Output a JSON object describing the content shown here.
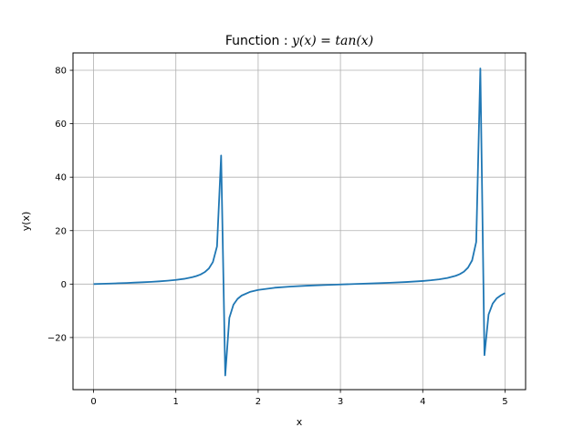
{
  "chart_data": {
    "type": "line",
    "title_prefix": "Function : ",
    "title_math": "y(x) = tan(x)",
    "xlabel": "x",
    "ylabel": "y(x)",
    "xlim": [
      -0.25,
      5.25
    ],
    "ylim": [
      -39.5,
      86.5
    ],
    "grid": true,
    "line_color": "#1f77b4",
    "xticks": [
      0,
      1,
      2,
      3,
      4,
      5
    ],
    "xtick_labels": [
      "0",
      "1",
      "2",
      "3",
      "4",
      "5"
    ],
    "yticks": [
      -20,
      0,
      20,
      40,
      60,
      80
    ],
    "ytick_labels": [
      "−20",
      "0",
      "20",
      "40",
      "60",
      "80"
    ],
    "series": [
      {
        "x": [
          0,
          0.1,
          0.2,
          0.3,
          0.4,
          0.5,
          0.6,
          0.7,
          0.8,
          0.9,
          1.0,
          1.1,
          1.2,
          1.25,
          1.3,
          1.35,
          1.4,
          1.45,
          1.5,
          1.55,
          1.6,
          1.65,
          1.7,
          1.75,
          1.8,
          1.9,
          2.0,
          2.2,
          2.4,
          2.6,
          2.8,
          3.0,
          3.2,
          3.4,
          3.6,
          3.8,
          4.0,
          4.1,
          4.2,
          4.3,
          4.4,
          4.45,
          4.5,
          4.55,
          4.6,
          4.65,
          4.7,
          4.75,
          4.8,
          4.85,
          4.9,
          4.95,
          5.0
        ],
        "y": [
          0,
          0.1,
          0.2,
          0.31,
          0.42,
          0.55,
          0.68,
          0.84,
          1.03,
          1.26,
          1.56,
          1.96,
          2.57,
          3.01,
          3.6,
          4.46,
          5.8,
          8.24,
          14.1,
          48.1,
          -34.2,
          -12.6,
          -7.7,
          -5.52,
          -4.29,
          -2.93,
          -2.19,
          -1.37,
          -0.92,
          -0.6,
          -0.36,
          -0.14,
          0.06,
          0.26,
          0.49,
          0.77,
          1.16,
          1.42,
          1.78,
          2.29,
          3.1,
          3.72,
          4.64,
          6.15,
          8.86,
          15.8,
          80.7,
          -26.6,
          -11.4,
          -7.3,
          -5.3,
          -4.2,
          -3.38
        ]
      }
    ]
  }
}
